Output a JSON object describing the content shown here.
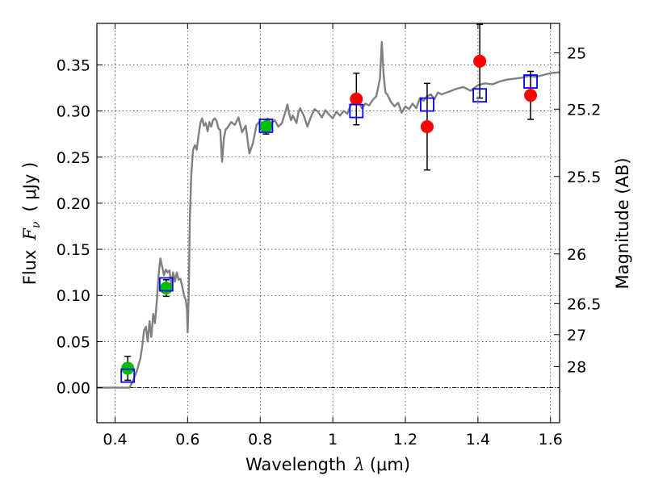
{
  "chart_data": {
    "type": "scatter",
    "xlabel": {
      "prefix": "Wavelength",
      "symbol": "λ",
      "unit": "(μm)"
    },
    "ylabel": {
      "prefix": "Flux",
      "symbol": "F",
      "subscript": "ν",
      "unit": "( μJy )"
    },
    "y2label": "Magnitude (AB)",
    "xlim": [
      0.35,
      1.625
    ],
    "ylim": [
      -0.038,
      0.395
    ],
    "grid": true,
    "x_ticks": [
      {
        "value": 0.4,
        "label": "0.4"
      },
      {
        "value": 0.6,
        "label": "0.6"
      },
      {
        "value": 0.8,
        "label": "0.8"
      },
      {
        "value": 1.0,
        "label": "1"
      },
      {
        "value": 1.2,
        "label": "1.2"
      },
      {
        "value": 1.4,
        "label": "1.4"
      },
      {
        "value": 1.6,
        "label": "1.6"
      }
    ],
    "y_ticks": [
      {
        "value": 0.0,
        "label": "0.00"
      },
      {
        "value": 0.05,
        "label": "0.05"
      },
      {
        "value": 0.1,
        "label": "0.10"
      },
      {
        "value": 0.15,
        "label": "0.15"
      },
      {
        "value": 0.2,
        "label": "0.20"
      },
      {
        "value": 0.25,
        "label": "0.25"
      },
      {
        "value": 0.3,
        "label": "0.30"
      },
      {
        "value": 0.35,
        "label": "0.35"
      }
    ],
    "mag_ticks": [
      {
        "label": "25",
        "flux": 0.363
      },
      {
        "label": "25.2",
        "flux": 0.302
      },
      {
        "label": "25.5",
        "flux": 0.229
      },
      {
        "label": "26",
        "flux": 0.145
      },
      {
        "label": "26.5",
        "flux": 0.0912
      },
      {
        "label": "27",
        "flux": 0.0575
      },
      {
        "label": "28",
        "flux": 0.0229
      }
    ],
    "series": [
      {
        "name": "model spectrum",
        "kind": "line",
        "color": "#808080",
        "x": [
          0.35,
          0.4,
          0.44,
          0.45,
          0.46,
          0.465,
          0.47,
          0.475,
          0.48,
          0.485,
          0.49,
          0.495,
          0.5,
          0.505,
          0.51,
          0.515,
          0.52,
          0.525,
          0.53,
          0.535,
          0.54,
          0.545,
          0.55,
          0.555,
          0.56,
          0.565,
          0.57,
          0.575,
          0.58,
          0.585,
          0.59,
          0.595,
          0.598,
          0.6,
          0.603,
          0.606,
          0.61,
          0.615,
          0.62,
          0.625,
          0.63,
          0.635,
          0.64,
          0.645,
          0.65,
          0.655,
          0.66,
          0.665,
          0.67,
          0.675,
          0.68,
          0.685,
          0.69,
          0.695,
          0.7,
          0.705,
          0.71,
          0.72,
          0.73,
          0.74,
          0.75,
          0.76,
          0.77,
          0.78,
          0.79,
          0.8,
          0.81,
          0.82,
          0.83,
          0.84,
          0.85,
          0.86,
          0.87,
          0.875,
          0.88,
          0.885,
          0.89,
          0.9,
          0.905,
          0.91,
          0.92,
          0.93,
          0.94,
          0.95,
          0.96,
          0.97,
          0.98,
          0.99,
          1.0,
          1.01,
          1.02,
          1.03,
          1.04,
          1.05,
          1.06,
          1.07,
          1.08,
          1.09,
          1.1,
          1.11,
          1.12,
          1.13,
          1.135,
          1.14,
          1.145,
          1.15,
          1.16,
          1.17,
          1.18,
          1.19,
          1.2,
          1.21,
          1.22,
          1.23,
          1.24,
          1.25,
          1.26,
          1.27,
          1.28,
          1.29,
          1.3,
          1.32,
          1.34,
          1.36,
          1.38,
          1.4,
          1.42,
          1.44,
          1.46,
          1.48,
          1.5,
          1.52,
          1.54,
          1.56,
          1.58,
          1.6,
          1.625
        ],
        "y": [
          0.0,
          0.0,
          0.0,
          0.008,
          0.018,
          0.025,
          0.032,
          0.045,
          0.062,
          0.066,
          0.05,
          0.072,
          0.055,
          0.08,
          0.07,
          0.094,
          0.122,
          0.14,
          0.131,
          0.122,
          0.128,
          0.125,
          0.127,
          0.112,
          0.125,
          0.115,
          0.125,
          0.117,
          0.118,
          0.11,
          0.1,
          0.095,
          0.085,
          0.06,
          0.1,
          0.18,
          0.23,
          0.258,
          0.263,
          0.258,
          0.273,
          0.287,
          0.292,
          0.284,
          0.287,
          0.278,
          0.288,
          0.283,
          0.29,
          0.292,
          0.289,
          0.281,
          0.279,
          0.245,
          0.271,
          0.28,
          0.282,
          0.288,
          0.285,
          0.293,
          0.277,
          0.284,
          0.254,
          0.265,
          0.285,
          0.289,
          0.284,
          0.292,
          0.287,
          0.29,
          0.283,
          0.287,
          0.3,
          0.307,
          0.297,
          0.29,
          0.295,
          0.287,
          0.298,
          0.303,
          0.295,
          0.283,
          0.294,
          0.302,
          0.299,
          0.293,
          0.301,
          0.296,
          0.292,
          0.299,
          0.295,
          0.3,
          0.297,
          0.307,
          0.31,
          0.311,
          0.303,
          0.308,
          0.306,
          0.312,
          0.316,
          0.335,
          0.375,
          0.34,
          0.32,
          0.318,
          0.31,
          0.305,
          0.309,
          0.298,
          0.305,
          0.302,
          0.308,
          0.303,
          0.314,
          0.311,
          0.316,
          0.318,
          0.313,
          0.32,
          0.318,
          0.321,
          0.324,
          0.326,
          0.322,
          0.328,
          0.33,
          0.329,
          0.332,
          0.334,
          0.335,
          0.336,
          0.338,
          0.337,
          0.339,
          0.341,
          0.342
        ]
      },
      {
        "name": "green points",
        "kind": "points",
        "marker": "circle",
        "color": "#00bf00",
        "points": [
          {
            "x": 0.435,
            "y": 0.021,
            "err": 0.013
          },
          {
            "x": 0.541,
            "y": 0.108,
            "err": 0.009
          },
          {
            "x": 0.816,
            "y": 0.283,
            "err": 0.008
          }
        ]
      },
      {
        "name": "red points",
        "kind": "points",
        "marker": "circle",
        "color": "#ff0000",
        "points": [
          {
            "x": 1.065,
            "y": 0.313,
            "err": 0.028
          },
          {
            "x": 1.26,
            "y": 0.283,
            "err": 0.047
          },
          {
            "x": 1.405,
            "y": 0.354,
            "err": 0.04
          },
          {
            "x": 1.545,
            "y": 0.317,
            "err": 0.026
          }
        ]
      },
      {
        "name": "model band fluxes",
        "kind": "points",
        "marker": "open-square",
        "color": "#0000ff",
        "points": [
          {
            "x": 0.435,
            "y": 0.013
          },
          {
            "x": 0.541,
            "y": 0.112
          },
          {
            "x": 0.816,
            "y": 0.284
          },
          {
            "x": 1.065,
            "y": 0.3
          },
          {
            "x": 1.26,
            "y": 0.307
          },
          {
            "x": 1.405,
            "y": 0.317
          },
          {
            "x": 1.545,
            "y": 0.332
          }
        ]
      }
    ]
  }
}
